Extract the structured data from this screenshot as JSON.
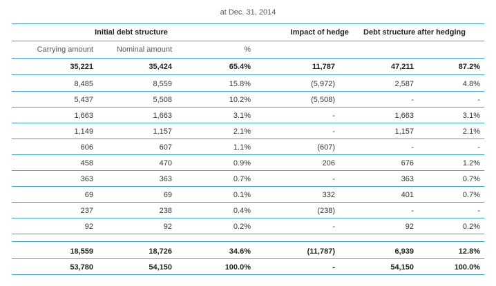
{
  "caption": "at Dec. 31, 2014",
  "headers": {
    "initial": "Initial debt structure",
    "impact": "Impact of hedge",
    "after": "Debt structure after hedging"
  },
  "subheaders": {
    "carrying": "Carrying amount",
    "nominal": "Nominal amount",
    "percent": "%"
  },
  "rows": [
    {
      "carrying": "35,221",
      "nominal": "35,424",
      "pct": "65.4%",
      "impact": "11,787",
      "after": "47,211",
      "after_pct": "87.2%",
      "bold": true
    },
    {
      "carrying": "8,485",
      "nominal": "8,559",
      "pct": "15.8%",
      "impact": "(5,972)",
      "after": "2,587",
      "after_pct": "4.8%"
    },
    {
      "carrying": "5,437",
      "nominal": "5,508",
      "pct": "10.2%",
      "impact": "(5,508)",
      "after": "-",
      "after_pct": "-"
    },
    {
      "carrying": "1,663",
      "nominal": "1,663",
      "pct": "3.1%",
      "impact": "-",
      "after": "1,663",
      "after_pct": "3.1%"
    },
    {
      "carrying": "1,149",
      "nominal": "1,157",
      "pct": "2.1%",
      "impact": "-",
      "after": "1,157",
      "after_pct": "2.1%"
    },
    {
      "carrying": "606",
      "nominal": "607",
      "pct": "1.1%",
      "impact": "(607)",
      "after": "-",
      "after_pct": "-"
    },
    {
      "carrying": "458",
      "nominal": "470",
      "pct": "0.9%",
      "impact": "206",
      "after": "676",
      "after_pct": "1.2%"
    },
    {
      "carrying": "363",
      "nominal": "363",
      "pct": "0.7%",
      "impact": "-",
      "after": "363",
      "after_pct": "0.7%"
    },
    {
      "carrying": "69",
      "nominal": "69",
      "pct": "0.1%",
      "impact": "332",
      "after": "401",
      "after_pct": "0.7%"
    },
    {
      "carrying": "237",
      "nominal": "238",
      "pct": "0.4%",
      "impact": "(238)",
      "after": "-",
      "after_pct": "-"
    },
    {
      "carrying": "92",
      "nominal": "92",
      "pct": "0.2%",
      "impact": "-",
      "after": "92",
      "after_pct": "0.2%"
    },
    {
      "carrying": "18,559",
      "nominal": "18,726",
      "pct": "34.6%",
      "impact": "(11,787)",
      "after": "6,939",
      "after_pct": "12.8%",
      "bold": true
    },
    {
      "carrying": "53,780",
      "nominal": "54,150",
      "pct": "100.0%",
      "impact": "-",
      "after": "54,150",
      "after_pct": "100.0%",
      "bold": true
    }
  ]
}
